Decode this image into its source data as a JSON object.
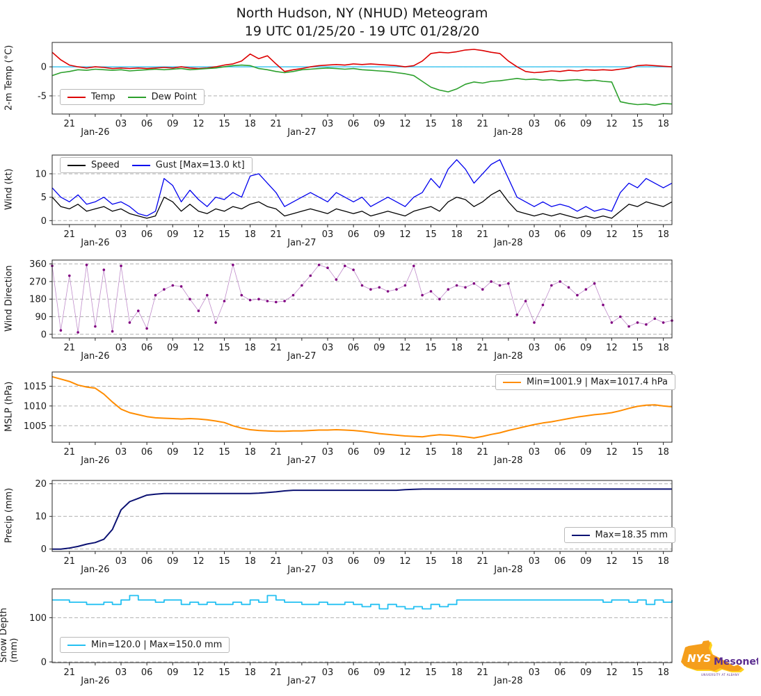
{
  "title": {
    "line1": "North Hudson, NY (NHUD) Meteogram",
    "line2": "19 UTC 01/25/20 - 19 UTC 01/28/20"
  },
  "logo": {
    "nys": "NYS",
    "mesonet": "Mesonet",
    "caption": "UNIVERSITY AT ALBANY"
  },
  "chart_data": {
    "type": "line",
    "x_unit": "hours from 19 UTC 01/25/20",
    "x_hours_total": 72,
    "xticks": [
      {
        "h": 2,
        "label": "21"
      },
      {
        "h": 5,
        "label": "Jan-26",
        "date": true
      },
      {
        "h": 8,
        "label": "03"
      },
      {
        "h": 11,
        "label": "06"
      },
      {
        "h": 14,
        "label": "09"
      },
      {
        "h": 17,
        "label": "12"
      },
      {
        "h": 20,
        "label": "15"
      },
      {
        "h": 23,
        "label": "18"
      },
      {
        "h": 26,
        "label": "21"
      },
      {
        "h": 29,
        "label": "Jan-27",
        "date": true
      },
      {
        "h": 32,
        "label": "03"
      },
      {
        "h": 35,
        "label": "06"
      },
      {
        "h": 38,
        "label": "09"
      },
      {
        "h": 41,
        "label": "12"
      },
      {
        "h": 44,
        "label": "15"
      },
      {
        "h": 47,
        "label": "18"
      },
      {
        "h": 50,
        "label": "21"
      },
      {
        "h": 53,
        "label": "Jan-28",
        "date": true
      },
      {
        "h": 56,
        "label": "03"
      },
      {
        "h": 59,
        "label": "06"
      },
      {
        "h": 62,
        "label": "09"
      },
      {
        "h": 65,
        "label": "12"
      },
      {
        "h": 68,
        "label": "15"
      },
      {
        "h": 71,
        "label": "18"
      }
    ],
    "panels": [
      {
        "id": "temp",
        "ylabel": "2-m Temp (°C)",
        "ylim": [
          -8,
          4.2
        ],
        "yticks": [
          0,
          -5
        ],
        "hline": {
          "y": 0,
          "color": "#45c8f1"
        },
        "legend": {
          "items": [
            {
              "label": "Temp",
              "color": "#dd0000"
            },
            {
              "label": "Dew Point",
              "color": "#2ca02c"
            }
          ]
        },
        "series": [
          {
            "name": "Temp",
            "color": "#dd0000",
            "width": 1.6,
            "values": [
              2.5,
              1.2,
              0.3,
              0.0,
              -0.2,
              0.0,
              -0.1,
              -0.3,
              -0.2,
              -0.3,
              -0.2,
              -0.3,
              -0.2,
              -0.1,
              -0.2,
              0.0,
              -0.2,
              -0.3,
              -0.2,
              0.0,
              0.3,
              0.5,
              1.0,
              2.2,
              1.4,
              1.9,
              0.5,
              -0.8,
              -0.5,
              -0.3,
              0.0,
              0.2,
              0.3,
              0.4,
              0.3,
              0.5,
              0.4,
              0.5,
              0.4,
              0.3,
              0.2,
              0.0,
              0.2,
              1.0,
              2.3,
              2.5,
              2.4,
              2.6,
              2.9,
              3.0,
              2.8,
              2.5,
              2.3,
              1.0,
              0.0,
              -0.8,
              -1.0,
              -0.9,
              -0.7,
              -0.8,
              -0.6,
              -0.7,
              -0.5,
              -0.6,
              -0.5,
              -0.6,
              -0.4,
              -0.2,
              0.2,
              0.3,
              0.2,
              0.1,
              0.0
            ]
          },
          {
            "name": "Dew Point",
            "color": "#2ca02c",
            "width": 1.6,
            "values": [
              -1.5,
              -1.0,
              -0.8,
              -0.5,
              -0.6,
              -0.4,
              -0.5,
              -0.6,
              -0.5,
              -0.7,
              -0.6,
              -0.5,
              -0.4,
              -0.5,
              -0.4,
              -0.3,
              -0.5,
              -0.4,
              -0.3,
              -0.2,
              0.0,
              0.2,
              0.3,
              0.2,
              -0.3,
              -0.5,
              -0.8,
              -1.0,
              -0.8,
              -0.5,
              -0.4,
              -0.3,
              -0.2,
              -0.3,
              -0.4,
              -0.3,
              -0.5,
              -0.6,
              -0.7,
              -0.8,
              -1.0,
              -1.2,
              -1.5,
              -2.5,
              -3.5,
              -4.0,
              -4.3,
              -3.8,
              -3.0,
              -2.6,
              -2.8,
              -2.5,
              -2.4,
              -2.2,
              -2.0,
              -2.2,
              -2.1,
              -2.3,
              -2.2,
              -2.4,
              -2.3,
              -2.2,
              -2.4,
              -2.3,
              -2.5,
              -2.6,
              -6.0,
              -6.3,
              -6.5,
              -6.4,
              -6.6,
              -6.3,
              -6.4
            ]
          }
        ]
      },
      {
        "id": "wind",
        "ylabel": "Wind (kt)",
        "ylim": [
          -0.7,
          14
        ],
        "yticks": [
          0,
          5,
          10
        ],
        "legend": {
          "items": [
            {
              "label": "Speed",
              "color": "#000000"
            },
            {
              "label": "Gust [Max=13.0 kt]",
              "color": "#0000ee"
            }
          ]
        },
        "series": [
          {
            "name": "Speed",
            "color": "#000000",
            "width": 1.3,
            "values": [
              5,
              3,
              2.5,
              3.5,
              2,
              2.5,
              3,
              2,
              2.5,
              1.5,
              1,
              0.5,
              1,
              5,
              4,
              2,
              3.5,
              2,
              1.5,
              2.5,
              2,
              3,
              2.5,
              3.5,
              4,
              3,
              2.5,
              1,
              1.5,
              2,
              2.5,
              2,
              1.5,
              2.5,
              2,
              1.5,
              2,
              1,
              1.5,
              2,
              1.5,
              1,
              2,
              2.5,
              3,
              2,
              4,
              5,
              4.5,
              3,
              4,
              5.5,
              6.5,
              4,
              2,
              1.5,
              1,
              1.5,
              1,
              1.5,
              1,
              0.5,
              1,
              0.5,
              1,
              0.5,
              2,
              3.5,
              3,
              4,
              3.5,
              3,
              4
            ]
          },
          {
            "name": "Gust [Max=13.0 kt]",
            "color": "#0000ee",
            "width": 1.3,
            "values": [
              7,
              5,
              4,
              5.5,
              3.5,
              4,
              5,
              3.5,
              4,
              3,
              1.5,
              1,
              2,
              9,
              7.5,
              4,
              6.5,
              4.5,
              3,
              5,
              4.5,
              6,
              5,
              9.5,
              10,
              8,
              6,
              3,
              4,
              5,
              6,
              5,
              4,
              6,
              5,
              4,
              5,
              3,
              4,
              5,
              4,
              3,
              5,
              6,
              9,
              7,
              11,
              13,
              11,
              8,
              10,
              12,
              13,
              9,
              5,
              4,
              3,
              4,
              3,
              3.5,
              3,
              2,
              3,
              2,
              2.5,
              2,
              6,
              8,
              7,
              9,
              8,
              7,
              8
            ]
          }
        ]
      },
      {
        "id": "winddir",
        "ylabel": "Wind Direction",
        "ylim": [
          -15,
          380
        ],
        "yticks": [
          360,
          270,
          180,
          90,
          0
        ],
        "series": [
          {
            "name": "Wind Direction",
            "color": "#bf8cca",
            "width": 0.8,
            "markers": true,
            "marker_color": "#800080",
            "values": [
              350,
              20,
              300,
              10,
              355,
              40,
              330,
              15,
              350,
              60,
              120,
              30,
              200,
              230,
              250,
              245,
              180,
              120,
              200,
              60,
              170,
              355,
              200,
              175,
              180,
              170,
              165,
              170,
              200,
              250,
              300,
              355,
              340,
              280,
              350,
              330,
              250,
              230,
              240,
              220,
              230,
              250,
              350,
              200,
              220,
              180,
              230,
              250,
              240,
              260,
              230,
              270,
              250,
              260,
              100,
              170,
              60,
              150,
              250,
              270,
              240,
              200,
              230,
              260,
              150,
              60,
              90,
              40,
              60,
              50,
              80,
              60,
              70
            ]
          }
        ]
      },
      {
        "id": "mslp",
        "ylabel": "MSLP (hPa)",
        "ylim": [
          1001,
          1018.6
        ],
        "yticks": [
          1015,
          1010,
          1005
        ],
        "legend": {
          "items": [
            {
              "label": "Min=1001.9 | Max=1017.4 hPa",
              "color": "#ff8c00"
            }
          ]
        },
        "series": [
          {
            "name": "MSLP",
            "color": "#ff8c00",
            "width": 2,
            "values": [
              1017.4,
              1016.8,
              1016.2,
              1015.3,
              1014.8,
              1014.5,
              1013.0,
              1011.0,
              1009.2,
              1008.3,
              1007.8,
              1007.3,
              1007.0,
              1006.9,
              1006.8,
              1006.7,
              1006.8,
              1006.7,
              1006.5,
              1006.2,
              1005.8,
              1005.0,
              1004.4,
              1004.0,
              1003.8,
              1003.7,
              1003.6,
              1003.6,
              1003.7,
              1003.7,
              1003.8,
              1003.9,
              1003.9,
              1004.0,
              1003.9,
              1003.8,
              1003.6,
              1003.3,
              1003.0,
              1002.8,
              1002.6,
              1002.4,
              1002.3,
              1002.2,
              1002.5,
              1002.7,
              1002.6,
              1002.4,
              1002.2,
              1001.9,
              1002.3,
              1002.8,
              1003.2,
              1003.8,
              1004.3,
              1004.8,
              1005.3,
              1005.7,
              1006.0,
              1006.4,
              1006.8,
              1007.2,
              1007.5,
              1007.8,
              1008.0,
              1008.3,
              1008.8,
              1009.4,
              1009.9,
              1010.2,
              1010.3,
              1010.0,
              1009.8
            ]
          }
        ]
      },
      {
        "id": "precip",
        "ylabel": "Precip (mm)",
        "ylim": [
          -0.5,
          21
        ],
        "yticks": [
          20,
          10,
          0
        ],
        "legend": {
          "items": [
            {
              "label": "Max=18.35 mm",
              "color": "#0b1172"
            }
          ]
        },
        "series": [
          {
            "name": "Precip",
            "color": "#0b1172",
            "width": 2,
            "values": [
              0,
              0,
              0.3,
              0.8,
              1.5,
              2.0,
              3.0,
              6.0,
              12.0,
              14.5,
              15.5,
              16.5,
              16.8,
              17.0,
              17.0,
              17.0,
              17.0,
              17.0,
              17.0,
              17.0,
              17.0,
              17.0,
              17.0,
              17.0,
              17.1,
              17.3,
              17.5,
              17.8,
              18.0,
              18.0,
              18.0,
              18.0,
              18.0,
              18.0,
              18.0,
              18.0,
              18.0,
              18.0,
              18.0,
              18.0,
              18.0,
              18.2,
              18.3,
              18.35,
              18.35,
              18.35,
              18.35,
              18.35,
              18.35,
              18.35,
              18.35,
              18.35,
              18.35,
              18.35,
              18.35,
              18.35,
              18.35,
              18.35,
              18.35,
              18.35,
              18.35,
              18.35,
              18.35,
              18.35,
              18.35,
              18.35,
              18.35,
              18.35,
              18.35,
              18.35,
              18.35,
              18.35,
              18.35
            ]
          }
        ]
      },
      {
        "id": "snow",
        "ylabel": "Snow Depth (mm)",
        "ylim": [
          0,
          165
        ],
        "yticks": [
          100,
          0
        ],
        "legend": {
          "items": [
            {
              "label": "Min=120.0 | Max=150.0 mm",
              "color": "#23c0f2"
            }
          ]
        },
        "series": [
          {
            "name": "Snow Depth",
            "color": "#23c0f2",
            "width": 1.8,
            "step": true,
            "values": [
              140,
              140,
              135,
              135,
              130,
              130,
              135,
              130,
              140,
              150,
              140,
              140,
              135,
              140,
              140,
              130,
              135,
              130,
              135,
              130,
              130,
              135,
              130,
              140,
              135,
              150,
              140,
              135,
              135,
              130,
              130,
              135,
              130,
              130,
              135,
              130,
              125,
              130,
              120,
              130,
              125,
              120,
              125,
              120,
              130,
              125,
              130,
              140,
              140,
              140,
              140,
              140,
              140,
              140,
              140,
              140,
              140,
              140,
              140,
              140,
              140,
              140,
              140,
              140,
              135,
              140,
              140,
              135,
              140,
              130,
              140,
              135,
              140
            ]
          }
        ]
      }
    ]
  }
}
